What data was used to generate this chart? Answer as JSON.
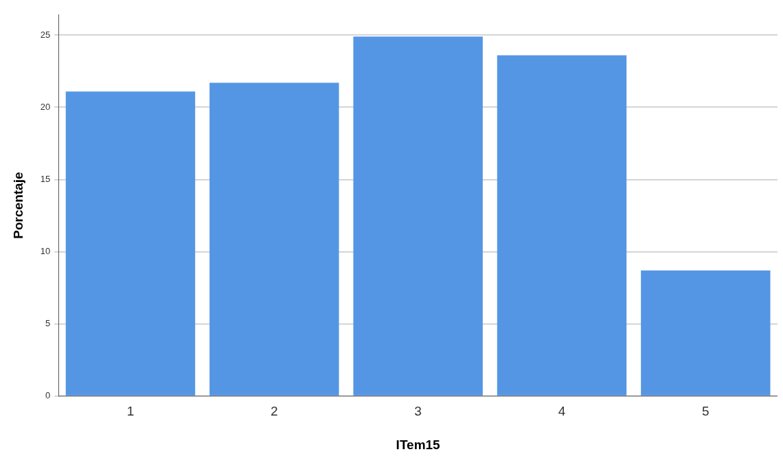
{
  "chart_data": {
    "type": "bar",
    "xlabel": "ITem15",
    "ylabel": "Porcentaje",
    "categories": [
      "1",
      "2",
      "3",
      "4",
      "5"
    ],
    "values": [
      21.1,
      21.7,
      24.9,
      23.6,
      8.7
    ],
    "color": "#5596e4",
    "ylim": [
      0,
      26.4
    ],
    "yticks": [
      0,
      5,
      10,
      15,
      20,
      25
    ],
    "grid": "y"
  }
}
